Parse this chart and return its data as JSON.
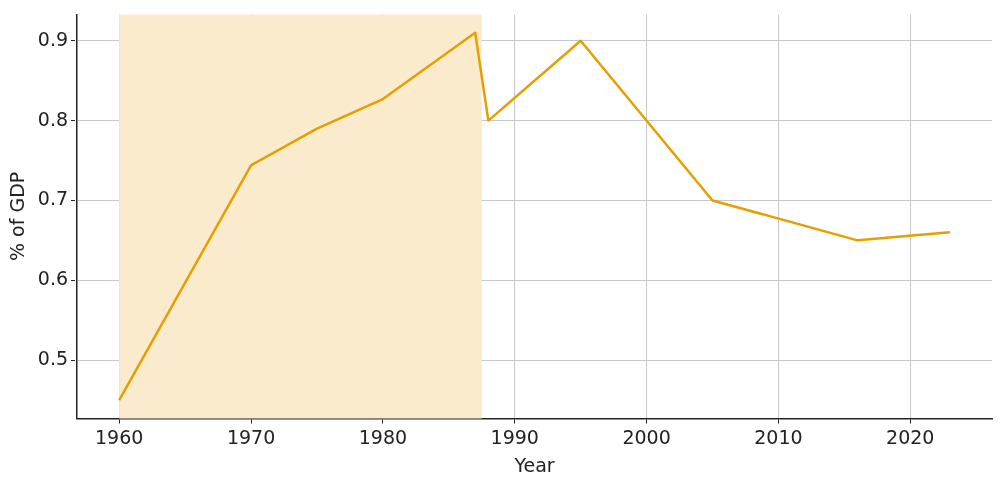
{
  "chart_data": {
    "type": "line",
    "xlabel": "Year",
    "ylabel": "% of GDP",
    "x": [
      1960,
      1970,
      1975,
      1980,
      1987,
      1988,
      1995,
      2005,
      2016,
      2023
    ],
    "series": [
      {
        "color": "#e69f00",
        "values": [
          0.45,
          0.744,
          0.79,
          0.827,
          0.91,
          0.8,
          0.9,
          0.7,
          0.65,
          0.66
        ]
      }
    ],
    "xlim": [
      1956.8,
      2026.2
    ],
    "xticks": [
      1960,
      1970,
      1980,
      1990,
      2000,
      2010,
      2020
    ],
    "ylim": [
      0.427,
      0.933
    ],
    "yticks": [
      0.5,
      0.6,
      0.7,
      0.8,
      0.9
    ],
    "bands": [
      {
        "axis": "x",
        "from": 1960,
        "to": 1987.5,
        "color": "#faebcd"
      }
    ],
    "grid": true,
    "legend": false,
    "marker": "none",
    "line_style": "solid"
  }
}
